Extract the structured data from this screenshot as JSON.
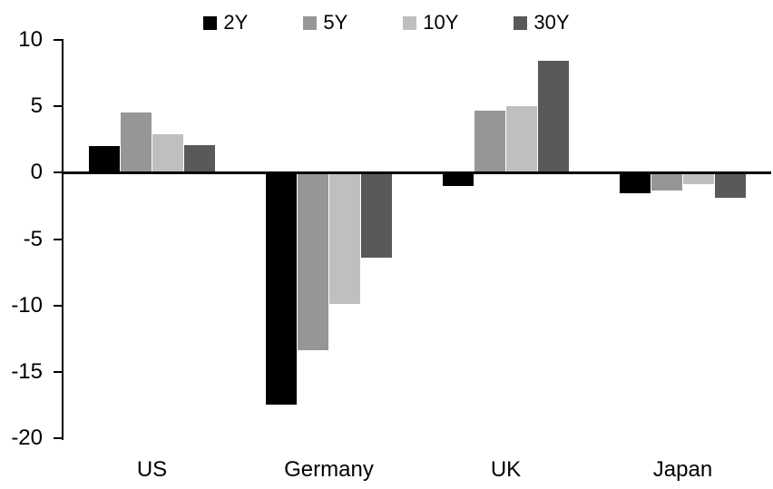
{
  "chart_data": {
    "type": "bar",
    "categories": [
      "US",
      "Germany",
      "UK",
      "Japan"
    ],
    "series": [
      {
        "name": "2Y",
        "color": "#000000",
        "values": [
          2.0,
          -17.5,
          -1.0,
          -1.6
        ]
      },
      {
        "name": "5Y",
        "color": "#969696",
        "values": [
          4.5,
          -13.4,
          4.7,
          -1.4
        ]
      },
      {
        "name": "10Y",
        "color": "#bfbfbf",
        "values": [
          2.9,
          -9.9,
          5.0,
          -0.9
        ]
      },
      {
        "name": "30Y",
        "color": "#595959",
        "values": [
          2.1,
          -6.4,
          8.4,
          -1.9
        ]
      }
    ],
    "title": "",
    "xlabel": "",
    "ylabel": "",
    "ylim": [
      -20,
      10
    ],
    "yticks": [
      10,
      5,
      0,
      -5,
      -10,
      -15,
      -20
    ],
    "legend_position": "top",
    "grid": false,
    "background_color": "#ffffff",
    "axis_color": "#000000"
  }
}
